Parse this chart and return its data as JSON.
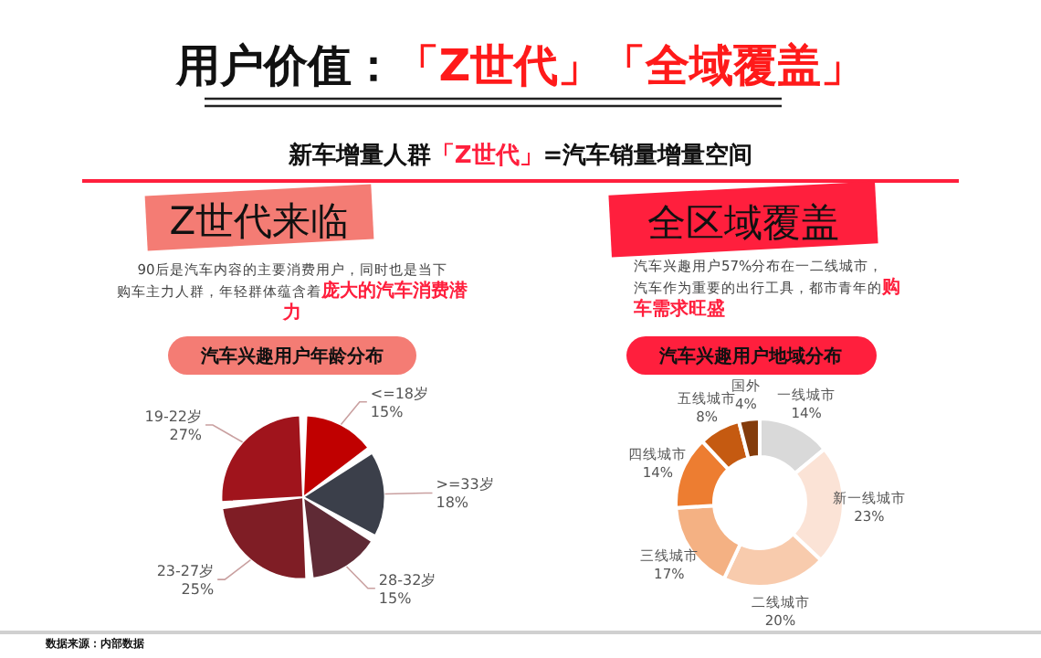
{
  "chart_data": [
    {
      "type": "pie",
      "title": "汽车兴趣用户年龄分布",
      "categories": [
        "<=18岁",
        ">=33岁",
        "28-32岁",
        "23-27岁",
        "19-22岁"
      ],
      "values": [
        15,
        18,
        15,
        25,
        27
      ],
      "value_labels": [
        "15%",
        "18%",
        "15%",
        "25%",
        "27%"
      ],
      "colors": [
        "#c00000",
        "#3b3f4a",
        "#5f2a35",
        "#7f1d25",
        "#a0141c"
      ],
      "annotations": [
        "用户价值：",
        "「Z世代」「全域覆盖」",
        "新车增量人群",
        "「Z世代」",
        "=汽车销量增量空间",
        "Z世代来临",
        "90后是汽车内容的主要消费用户，同时也是当下购车主力人群，年轻群体蕴含着",
        "庞大的汽车消费潜力",
        "数据来源：内部数据"
      ]
    },
    {
      "type": "donut",
      "title": "汽车兴趣用户地域分布",
      "categories": [
        "一线城市",
        "新一线城市",
        "二线城市",
        "三线城市",
        "四线城市",
        "五线城市",
        "国外"
      ],
      "values": [
        14,
        23,
        20,
        17,
        14,
        8,
        4
      ],
      "value_labels": [
        "14%",
        "23%",
        "20%",
        "17%",
        "14%",
        "8%",
        "4%"
      ],
      "colors": [
        "#d9d9d9",
        "#fbe3d6",
        "#f8cbad",
        "#f4b183",
        "#ed7d31",
        "#c55a11",
        "#843c0c"
      ],
      "annotations": [
        "全区域覆盖",
        "汽车兴趣用户57%分布在一二线城市，汽车作为重要的出行工具，都市青年的",
        "购车需求旺盛"
      ]
    }
  ]
}
